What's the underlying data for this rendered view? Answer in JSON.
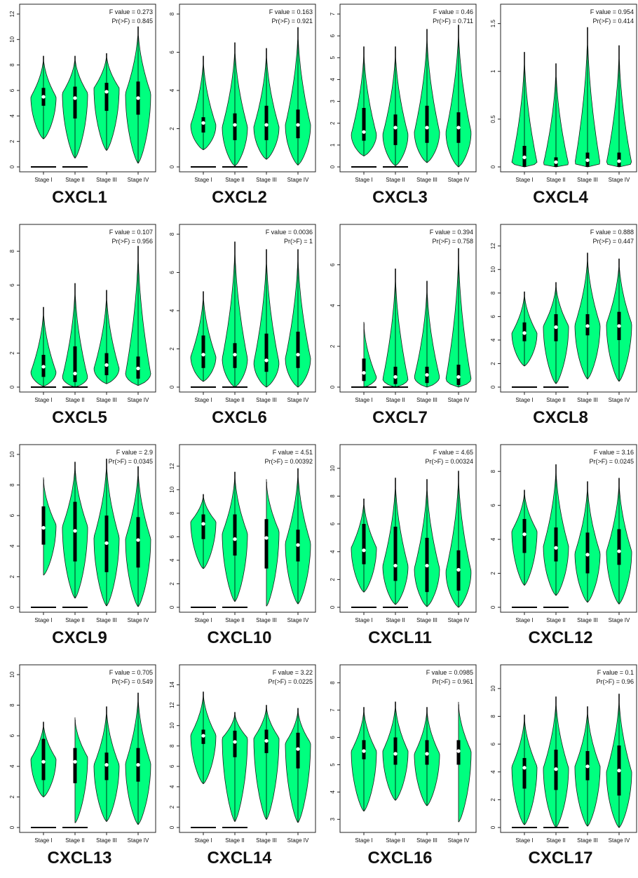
{
  "figure": {
    "colors": {
      "violin_fill": "#00ff7f",
      "violin_stroke": "#1a1a1a",
      "box": "#000000",
      "median": "#ffffff"
    },
    "stages": [
      "Stage I",
      "Stage II",
      "Stage III",
      "Stage IV"
    ]
  },
  "chart_data": [
    {
      "type": "violin",
      "title": "CXCL1",
      "f_label": "F value = 0.273",
      "p_label": "Pr(>F) = 0.845",
      "ylim": [
        0,
        12
      ],
      "yticks": [
        0,
        2,
        4,
        6,
        8,
        10,
        12
      ],
      "categories": [
        "Stage I",
        "Stage II",
        "Stage III",
        "Stage IV"
      ],
      "stats": [
        {
          "min": 2.2,
          "q1": 4.8,
          "median": 5.5,
          "q3": 6.2,
          "max": 8.7,
          "mode": 5.5
        },
        {
          "min": 0.7,
          "q1": 3.8,
          "median": 5.4,
          "q3": 6.3,
          "max": 8.7,
          "mode": 5.8
        },
        {
          "min": 1.3,
          "q1": 4.4,
          "median": 5.9,
          "q3": 6.6,
          "max": 8.9,
          "mode": 6.2
        },
        {
          "min": 0.3,
          "q1": 4.1,
          "median": 5.4,
          "q3": 6.7,
          "max": 11.0,
          "mode": 5.8
        }
      ],
      "flat": [
        0,
        1
      ]
    },
    {
      "type": "violin",
      "title": "CXCL2",
      "f_label": "F value = 0.163",
      "p_label": "Pr(>F) = 0.921",
      "ylim": [
        0,
        8
      ],
      "yticks": [
        0,
        2,
        4,
        6,
        8
      ],
      "categories": [
        "Stage I",
        "Stage II",
        "Stage III",
        "Stage IV"
      ],
      "stats": [
        {
          "min": 0.9,
          "q1": 1.8,
          "median": 2.3,
          "q3": 2.6,
          "max": 5.8,
          "mode": 2.2
        },
        {
          "min": 0.05,
          "q1": 1.4,
          "median": 2.2,
          "q3": 2.8,
          "max": 6.5,
          "mode": 2.1
        },
        {
          "min": 0.4,
          "q1": 1.4,
          "median": 2.2,
          "q3": 3.2,
          "max": 6.2,
          "mode": 2.1
        },
        {
          "min": 0.1,
          "q1": 1.5,
          "median": 2.2,
          "q3": 3.0,
          "max": 7.3,
          "mode": 2.2
        }
      ],
      "flat": [
        0,
        1
      ]
    },
    {
      "type": "violin",
      "title": "CXCL3",
      "f_label": "F value = 0.46",
      "p_label": "Pr(>F) = 0.711",
      "ylim": [
        0,
        7
      ],
      "yticks": [
        0,
        1,
        2,
        3,
        4,
        5,
        6,
        7
      ],
      "categories": [
        "Stage I",
        "Stage II",
        "Stage III",
        "Stage IV"
      ],
      "stats": [
        {
          "min": 0.5,
          "q1": 1.2,
          "median": 1.6,
          "q3": 2.7,
          "max": 5.5,
          "mode": 1.5
        },
        {
          "min": 0.05,
          "q1": 1.0,
          "median": 1.8,
          "q3": 2.4,
          "max": 5.5,
          "mode": 1.5
        },
        {
          "min": 0.2,
          "q1": 1.1,
          "median": 1.8,
          "q3": 2.8,
          "max": 6.3,
          "mode": 1.6
        },
        {
          "min": 0.0,
          "q1": 1.1,
          "median": 1.8,
          "q3": 2.5,
          "max": 6.5,
          "mode": 1.6
        }
      ],
      "flat": [
        0,
        1
      ]
    },
    {
      "type": "violin",
      "title": "CXCL4",
      "f_label": "F value = 0.954",
      "p_label": "Pr(>F) = 0.414",
      "ylim": [
        0,
        1.6
      ],
      "yticks": [
        0,
        0.5,
        1.0,
        1.5
      ],
      "categories": [
        "Stage I",
        "Stage II",
        "Stage III",
        "Stage IV"
      ],
      "stats": [
        {
          "min": 0.0,
          "q1": 0.0,
          "median": 0.1,
          "q3": 0.22,
          "max": 1.2,
          "mode": 0.05
        },
        {
          "min": 0.0,
          "q1": 0.0,
          "median": 0.05,
          "q3": 0.1,
          "max": 1.08,
          "mode": 0.03
        },
        {
          "min": 0.0,
          "q1": 0.0,
          "median": 0.07,
          "q3": 0.15,
          "max": 1.46,
          "mode": 0.04
        },
        {
          "min": 0.0,
          "q1": 0.0,
          "median": 0.06,
          "q3": 0.15,
          "max": 1.27,
          "mode": 0.04
        }
      ],
      "flat": []
    },
    {
      "type": "violin",
      "title": "CXCL5",
      "f_label": "F value = 0.107",
      "p_label": "Pr(>F) = 0.956",
      "ylim": [
        0,
        9
      ],
      "yticks": [
        0,
        2,
        4,
        6,
        8
      ],
      "categories": [
        "Stage I",
        "Stage II",
        "Stage III",
        "Stage IV"
      ],
      "stats": [
        {
          "min": 0.05,
          "q1": 0.6,
          "median": 1.2,
          "q3": 1.9,
          "max": 4.7,
          "mode": 0.9
        },
        {
          "min": 0.0,
          "q1": 0.3,
          "median": 0.8,
          "q3": 2.4,
          "max": 6.1,
          "mode": 0.6
        },
        {
          "min": 0.2,
          "q1": 0.7,
          "median": 1.3,
          "q3": 2.0,
          "max": 5.7,
          "mode": 1.1
        },
        {
          "min": 0.1,
          "q1": 0.5,
          "median": 1.1,
          "q3": 1.8,
          "max": 8.3,
          "mode": 0.8
        }
      ],
      "flat": [
        0,
        1
      ]
    },
    {
      "type": "violin",
      "title": "CXCL6",
      "f_label": "F value = 0.0036",
      "p_label": "Pr(>F) = 1",
      "ylim": [
        0,
        8
      ],
      "yticks": [
        0,
        2,
        4,
        6,
        8
      ],
      "categories": [
        "Stage I",
        "Stage II",
        "Stage III",
        "Stage IV"
      ],
      "stats": [
        {
          "min": 0.3,
          "q1": 1.0,
          "median": 1.7,
          "q3": 2.7,
          "max": 5.0,
          "mode": 1.6
        },
        {
          "min": 0.0,
          "q1": 1.0,
          "median": 1.7,
          "q3": 2.3,
          "max": 7.6,
          "mode": 1.5
        },
        {
          "min": 0.0,
          "q1": 0.8,
          "median": 1.4,
          "q3": 2.8,
          "max": 7.2,
          "mode": 1.3
        },
        {
          "min": 0.0,
          "q1": 1.0,
          "median": 1.7,
          "q3": 2.9,
          "max": 7.2,
          "mode": 1.5
        }
      ],
      "flat": [
        0,
        1
      ]
    },
    {
      "type": "violin",
      "title": "CXCL7",
      "f_label": "F value = 0.394",
      "p_label": "Pr(>F) = 0.758",
      "ylim": [
        0,
        7.5
      ],
      "yticks": [
        0,
        2,
        4,
        6
      ],
      "categories": [
        "Stage I",
        "Stage II",
        "Stage III",
        "Stage IV"
      ],
      "stats": [
        {
          "min": 0.0,
          "q1": 0.3,
          "median": 0.7,
          "q3": 1.4,
          "max": 3.2,
          "mode": 0.5
        },
        {
          "min": 0.0,
          "q1": 0.15,
          "median": 0.5,
          "q3": 1.0,
          "max": 5.8,
          "mode": 0.4
        },
        {
          "min": 0.0,
          "q1": 0.2,
          "median": 0.6,
          "q3": 1.0,
          "max": 5.2,
          "mode": 0.5
        },
        {
          "min": 0.0,
          "q1": 0.1,
          "median": 0.5,
          "q3": 1.1,
          "max": 6.8,
          "mode": 0.4
        }
      ],
      "flat": [
        0,
        1
      ]
    },
    {
      "type": "violin",
      "title": "CXCL8",
      "f_label": "F value = 0.888",
      "p_label": "Pr(>F) = 0.447",
      "ylim": [
        0,
        13
      ],
      "yticks": [
        0,
        2,
        4,
        6,
        8,
        10,
        12
      ],
      "categories": [
        "Stage I",
        "Stage II",
        "Stage III",
        "Stage IV"
      ],
      "stats": [
        {
          "min": 1.8,
          "q1": 3.9,
          "median": 4.6,
          "q3": 5.5,
          "max": 8.1,
          "mode": 4.6
        },
        {
          "min": 0.3,
          "q1": 3.9,
          "median": 5.1,
          "q3": 6.2,
          "max": 8.9,
          "mode": 5.2
        },
        {
          "min": 0.7,
          "q1": 4.4,
          "median": 5.2,
          "q3": 6.2,
          "max": 11.4,
          "mode": 5.3
        },
        {
          "min": 0.5,
          "q1": 4.0,
          "median": 5.2,
          "q3": 6.4,
          "max": 10.9,
          "mode": 5.4
        }
      ],
      "flat": [
        0,
        1
      ]
    },
    {
      "type": "violin",
      "title": "CXCL9",
      "f_label": "F value = 2.9",
      "p_label": "Pr(>F) = 0.0345",
      "ylim": [
        0,
        10
      ],
      "yticks": [
        0,
        2,
        4,
        6,
        8,
        10
      ],
      "categories": [
        "Stage I",
        "Stage II",
        "Stage III",
        "Stage IV"
      ],
      "stats": [
        {
          "min": 2.1,
          "q1": 4.1,
          "median": 5.2,
          "q3": 6.6,
          "max": 8.5,
          "mode": 5.4
        },
        {
          "min": 0.6,
          "q1": 3.0,
          "median": 5.0,
          "q3": 6.9,
          "max": 9.5,
          "mode": 5.3
        },
        {
          "min": 0.1,
          "q1": 2.3,
          "median": 4.2,
          "q3": 6.0,
          "max": 9.7,
          "mode": 4.6
        },
        {
          "min": 0.05,
          "q1": 2.6,
          "median": 4.4,
          "q3": 5.9,
          "max": 9.2,
          "mode": 4.5
        }
      ],
      "flat": [
        0,
        1
      ]
    },
    {
      "type": "violin",
      "title": "CXCL10",
      "f_label": "F value = 4.51",
      "p_label": "Pr(>F) = 0.00392",
      "ylim": [
        0,
        13
      ],
      "yticks": [
        0,
        2,
        4,
        6,
        8,
        10,
        12
      ],
      "categories": [
        "Stage I",
        "Stage II",
        "Stage III",
        "Stage IV"
      ],
      "stats": [
        {
          "min": 3.3,
          "q1": 5.8,
          "median": 7.1,
          "q3": 7.9,
          "max": 9.6,
          "mode": 7.3
        },
        {
          "min": 0.5,
          "q1": 4.4,
          "median": 5.8,
          "q3": 7.9,
          "max": 11.5,
          "mode": 6.3
        },
        {
          "min": 0.1,
          "q1": 3.3,
          "median": 5.9,
          "q3": 7.5,
          "max": 10.9,
          "mode": 6.5
        },
        {
          "min": 0.3,
          "q1": 3.9,
          "median": 5.3,
          "q3": 6.6,
          "max": 11.8,
          "mode": 5.5
        }
      ],
      "flat": [
        0,
        1
      ]
    },
    {
      "type": "violin",
      "title": "CXCL11",
      "f_label": "F value = 4.65",
      "p_label": "Pr(>F) = 0.00324",
      "ylim": [
        0,
        11
      ],
      "yticks": [
        0,
        2,
        4,
        6,
        8,
        10
      ],
      "categories": [
        "Stage I",
        "Stage II",
        "Stage III",
        "Stage IV"
      ],
      "stats": [
        {
          "min": 1.1,
          "q1": 3.1,
          "median": 4.1,
          "q3": 6.0,
          "max": 7.8,
          "mode": 4.3
        },
        {
          "min": 0.2,
          "q1": 1.9,
          "median": 3.0,
          "q3": 5.8,
          "max": 9.3,
          "mode": 3.0
        },
        {
          "min": 0.05,
          "q1": 1.1,
          "median": 3.0,
          "q3": 5.0,
          "max": 9.2,
          "mode": 2.8
        },
        {
          "min": 0.0,
          "q1": 1.2,
          "median": 2.7,
          "q3": 4.1,
          "max": 9.8,
          "mode": 2.6
        }
      ],
      "flat": [
        0,
        1
      ]
    },
    {
      "type": "violin",
      "title": "CXCL12",
      "f_label": "F value = 3.16",
      "p_label": "Pr(>F) = 0.0245",
      "ylim": [
        0,
        9
      ],
      "yticks": [
        0,
        2,
        4,
        6,
        8
      ],
      "categories": [
        "Stage I",
        "Stage II",
        "Stage III",
        "Stage IV"
      ],
      "stats": [
        {
          "min": 1.3,
          "q1": 3.2,
          "median": 4.3,
          "q3": 5.2,
          "max": 6.9,
          "mode": 4.5
        },
        {
          "min": 0.7,
          "q1": 2.7,
          "median": 3.5,
          "q3": 4.7,
          "max": 8.4,
          "mode": 3.6
        },
        {
          "min": 0.3,
          "q1": 2.0,
          "median": 3.1,
          "q3": 4.4,
          "max": 7.4,
          "mode": 3.2
        },
        {
          "min": 0.2,
          "q1": 2.5,
          "median": 3.3,
          "q3": 4.6,
          "max": 7.6,
          "mode": 3.3
        }
      ],
      "flat": [
        0,
        1
      ]
    },
    {
      "type": "violin",
      "title": "CXCL13",
      "f_label": "F value = 0.705",
      "p_label": "Pr(>F) = 0.549",
      "ylim": [
        0,
        10
      ],
      "yticks": [
        0,
        2,
        4,
        6,
        8,
        10
      ],
      "categories": [
        "Stage I",
        "Stage II",
        "Stage III",
        "Stage IV"
      ],
      "stats": [
        {
          "min": 2.0,
          "q1": 3.1,
          "median": 4.3,
          "q3": 5.8,
          "max": 6.9,
          "mode": 4.5
        },
        {
          "min": 0.3,
          "q1": 2.9,
          "median": 4.3,
          "q3": 5.2,
          "max": 7.2,
          "mode": 4.6
        },
        {
          "min": 0.4,
          "q1": 3.1,
          "median": 4.1,
          "q3": 4.9,
          "max": 7.9,
          "mode": 4.1
        },
        {
          "min": 0.2,
          "q1": 3.0,
          "median": 4.1,
          "q3": 5.2,
          "max": 8.8,
          "mode": 4.2
        }
      ],
      "flat": [
        0,
        1
      ]
    },
    {
      "type": "violin",
      "title": "CXCL14",
      "f_label": "F value = 3.22",
      "p_label": "Pr(>F) = 0.0225",
      "ylim": [
        0,
        15
      ],
      "yticks": [
        0,
        2,
        4,
        6,
        8,
        10,
        12,
        14
      ],
      "categories": [
        "Stage I",
        "Stage II",
        "Stage III",
        "Stage IV"
      ],
      "stats": [
        {
          "min": 4.3,
          "q1": 8.2,
          "median": 9.0,
          "q3": 9.6,
          "max": 13.3,
          "mode": 9.1
        },
        {
          "min": 0.6,
          "q1": 6.9,
          "median": 8.4,
          "q3": 9.5,
          "max": 11.3,
          "mode": 8.8
        },
        {
          "min": 0.8,
          "q1": 7.3,
          "median": 8.5,
          "q3": 9.6,
          "max": 12.0,
          "mode": 8.8
        },
        {
          "min": 0.5,
          "q1": 5.8,
          "median": 7.7,
          "q3": 9.3,
          "max": 11.7,
          "mode": 8.3
        }
      ],
      "flat": [
        0,
        1
      ]
    },
    {
      "type": "violin",
      "title": "CXCL16",
      "f_label": "F value = 0.0985",
      "p_label": "Pr(>F) = 0.961",
      "ylim": [
        2.7,
        8.3
      ],
      "yticks": [
        3,
        4,
        5,
        6,
        7,
        8
      ],
      "categories": [
        "Stage I",
        "Stage II",
        "Stage III",
        "Stage IV"
      ],
      "stats": [
        {
          "min": 3.3,
          "q1": 5.2,
          "median": 5.5,
          "q3": 5.9,
          "max": 7.1,
          "mode": 5.5
        },
        {
          "min": 3.7,
          "q1": 5.0,
          "median": 5.4,
          "q3": 6.0,
          "max": 7.3,
          "mode": 5.5
        },
        {
          "min": 3.5,
          "q1": 5.0,
          "median": 5.4,
          "q3": 5.9,
          "max": 7.1,
          "mode": 5.4
        },
        {
          "min": 2.9,
          "q1": 5.0,
          "median": 5.5,
          "q3": 5.9,
          "max": 7.3,
          "mode": 5.5
        }
      ],
      "flat": []
    },
    {
      "type": "violin",
      "title": "CXCL17",
      "f_label": "F value = 0.1",
      "p_label": "Pr(>F) = 0.96",
      "ylim": [
        0,
        11
      ],
      "yticks": [
        0,
        2,
        4,
        6,
        8,
        10
      ],
      "categories": [
        "Stage I",
        "Stage II",
        "Stage III",
        "Stage IV"
      ],
      "stats": [
        {
          "min": 0.2,
          "q1": 2.8,
          "median": 4.3,
          "q3": 5.0,
          "max": 8.1,
          "mode": 4.4
        },
        {
          "min": 0.0,
          "q1": 2.7,
          "median": 4.2,
          "q3": 5.6,
          "max": 9.4,
          "mode": 4.3
        },
        {
          "min": 0.1,
          "q1": 3.4,
          "median": 4.4,
          "q3": 5.5,
          "max": 8.7,
          "mode": 4.4
        },
        {
          "min": 0.0,
          "q1": 2.3,
          "median": 4.1,
          "q3": 5.9,
          "max": 9.6,
          "mode": 4.0
        }
      ],
      "flat": [
        0,
        1
      ]
    }
  ]
}
